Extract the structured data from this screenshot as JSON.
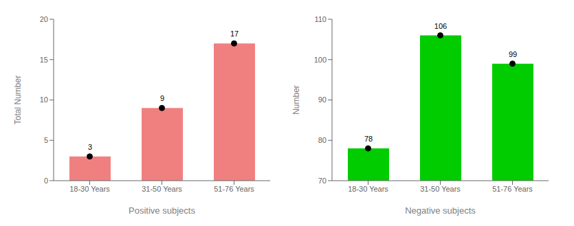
{
  "chart_data": [
    {
      "type": "bar",
      "categories": [
        "18-30 Years",
        "31-50 Years",
        "51-76 Years"
      ],
      "values": [
        3,
        9,
        17
      ],
      "color": "#F08080",
      "xlabel": "Positive subjects",
      "ylabel": "Total Number",
      "ylim": [
        0,
        20
      ],
      "yticks": [
        0,
        5,
        10,
        15,
        20
      ],
      "data_labels": true,
      "marker": "circle"
    },
    {
      "type": "bar",
      "categories": [
        "18-30 Years",
        "31-50 Years",
        "51-76 Years"
      ],
      "values": [
        78,
        106,
        99
      ],
      "color": "#00CC00",
      "xlabel": "Negative subjects",
      "ylabel": "Number",
      "ylim": [
        70,
        110
      ],
      "yticks": [
        70,
        80,
        90,
        100,
        110
      ],
      "data_labels": true,
      "marker": "circle"
    }
  ]
}
